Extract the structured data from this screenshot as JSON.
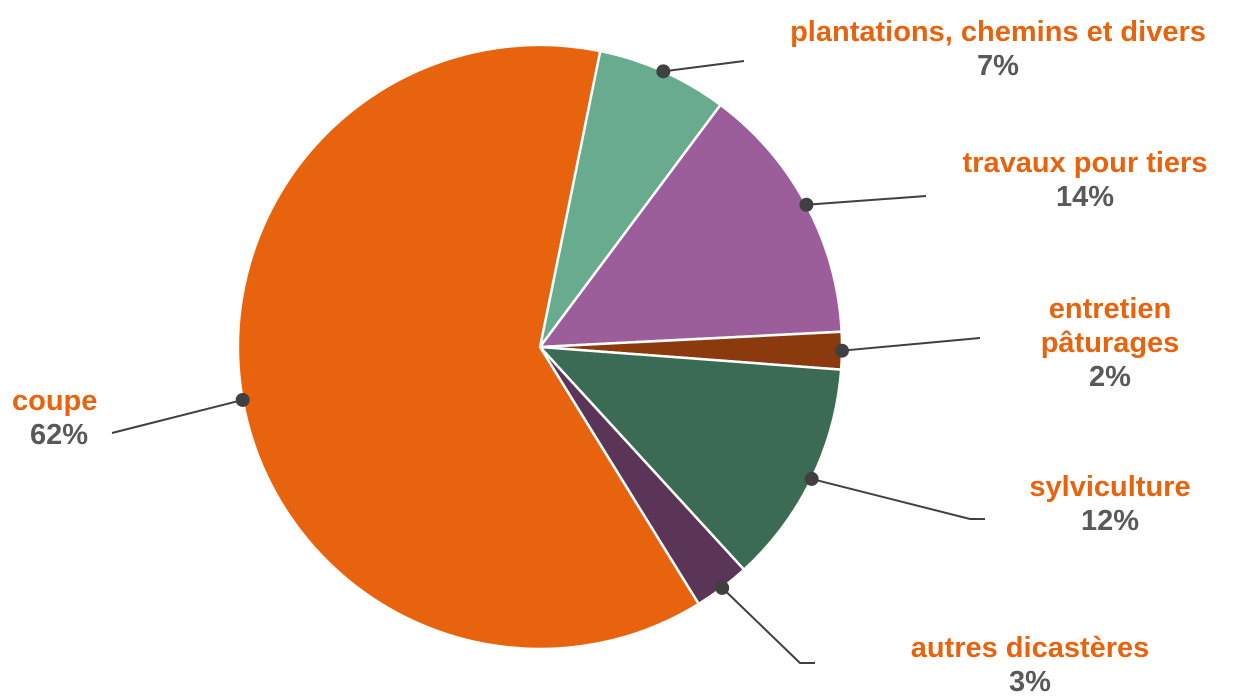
{
  "chart_data": {
    "type": "pie",
    "title": "",
    "slices": [
      {
        "label": "plantations, chemins et divers",
        "value": 7,
        "display": "7%",
        "color": "#69ab8f"
      },
      {
        "label": "travaux pour tiers",
        "value": 14,
        "display": "14%",
        "color": "#9b5e9b"
      },
      {
        "label": "entretien pâturages",
        "label_lines": [
          "entretien",
          "pâturages"
        ],
        "value": 2,
        "display": "2%",
        "color": "#8b3a0e"
      },
      {
        "label": "sylviculture",
        "value": 12,
        "display": "12%",
        "color": "#3b6b55"
      },
      {
        "label": "autres dicastères",
        "value": 3,
        "display": "3%",
        "color": "#5a3558"
      },
      {
        "label": "coupe",
        "value": 62,
        "display": "62%",
        "color": "#e8630e"
      }
    ]
  }
}
